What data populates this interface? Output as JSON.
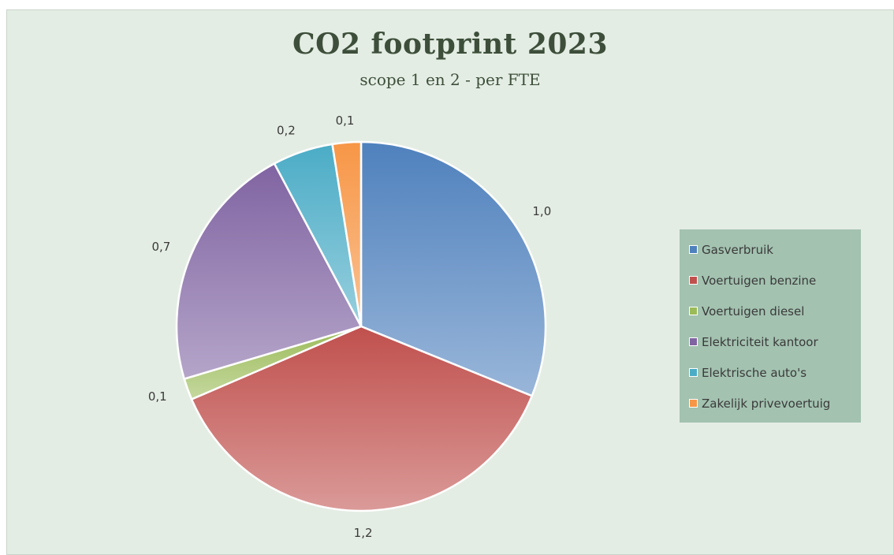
{
  "chart_data": {
    "type": "pie",
    "title": "CO2 footprint 2023",
    "subtitle": "scope 1 en 2 - per FTE",
    "categories": [
      "Gasverbruik",
      "Voertuigen benzine",
      "Voertuigen diesel",
      "Elektriciteit kantoor",
      "Elektrische auto's",
      "Zakelijk privevoertuig"
    ],
    "values": [
      1.0,
      1.2,
      0.06,
      0.7,
      0.17,
      0.08
    ],
    "data_labels": [
      "1,0",
      "1,2",
      "0,1",
      "0,7",
      "0,2",
      "0,1"
    ],
    "colors": [
      "#4f81bd",
      "#c0504d",
      "#9bbb59",
      "#8064a2",
      "#4bacc6",
      "#f79646"
    ],
    "legend_position": "right"
  }
}
